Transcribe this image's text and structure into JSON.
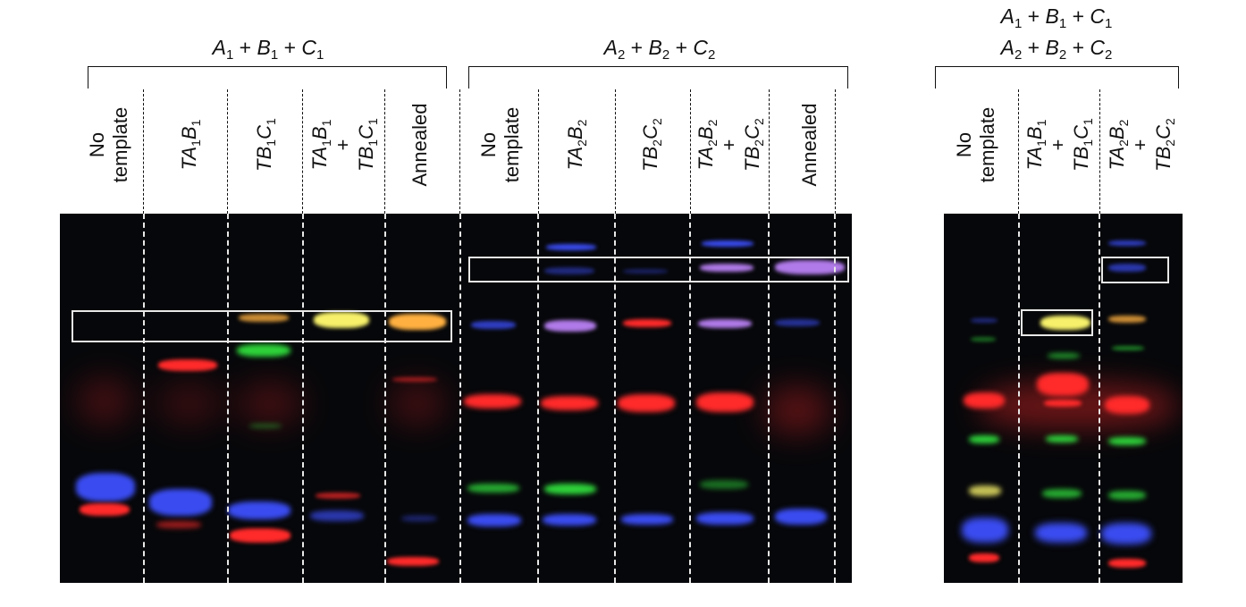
{
  "groups": {
    "g1": {
      "parts": [
        {
          "l": "A",
          "s": "1"
        },
        {
          "l": "B",
          "s": "1"
        },
        {
          "l": "C",
          "s": "1"
        }
      ]
    },
    "g2": {
      "parts": [
        {
          "l": "A",
          "s": "2"
        },
        {
          "l": "B",
          "s": "2"
        },
        {
          "l": "C",
          "s": "2"
        }
      ]
    },
    "g3": {
      "line1": [
        {
          "l": "A",
          "s": "1"
        },
        {
          "l": "B",
          "s": "1"
        },
        {
          "l": "C",
          "s": "1"
        }
      ],
      "line2": [
        {
          "l": "A",
          "s": "2"
        },
        {
          "l": "B",
          "s": "2"
        },
        {
          "l": "C",
          "s": "2"
        }
      ]
    }
  },
  "lanes_left": [
    {
      "lines": [
        "No",
        "template"
      ]
    },
    {
      "lines": [
        "TA<sub>1</sub>B<sub>1</sub>"
      ],
      "italic": true
    },
    {
      "lines": [
        "TB<sub>1</sub>C<sub>1</sub>"
      ],
      "italic": true
    },
    {
      "lines": [
        "TA<sub>1</sub>B<sub>1</sub>",
        "+",
        "TB<sub>1</sub>C<sub>1</sub>"
      ],
      "italic": true
    },
    {
      "lines": [
        "Annealed"
      ]
    },
    {
      "lines": [
        "No",
        "template"
      ]
    },
    {
      "lines": [
        "TA<sub>2</sub>B<sub>2</sub>"
      ],
      "italic": true
    },
    {
      "lines": [
        "TB<sub>2</sub>C<sub>2</sub>"
      ],
      "italic": true
    },
    {
      "lines": [
        "TA<sub>2</sub>B<sub>2</sub>",
        "+",
        "TB<sub>2</sub>C<sub>2</sub>"
      ],
      "italic": true
    },
    {
      "lines": [
        "Annealed"
      ]
    }
  ],
  "lanes_right": [
    {
      "lines": [
        "No",
        "template"
      ]
    },
    {
      "lines": [
        "TA<sub>1</sub>B<sub>1</sub>",
        "+",
        "TB<sub>1</sub>C<sub>1</sub>"
      ],
      "italic": true
    },
    {
      "lines": [
        "TA<sub>2</sub>B<sub>2</sub>",
        "+",
        "TB<sub>2</sub>C<sub>2</sub>"
      ],
      "italic": true
    }
  ],
  "symbols": {
    "plus": "+"
  },
  "colors": {
    "gel_bg": "#06070a",
    "red": "#ff2a2a",
    "blue": "#3a4cf0",
    "green": "#2ed23a",
    "yellow": "#f6f06a",
    "orange": "#ffb040",
    "violet": "#b07ae8",
    "frame": "#e8e8e8"
  }
}
